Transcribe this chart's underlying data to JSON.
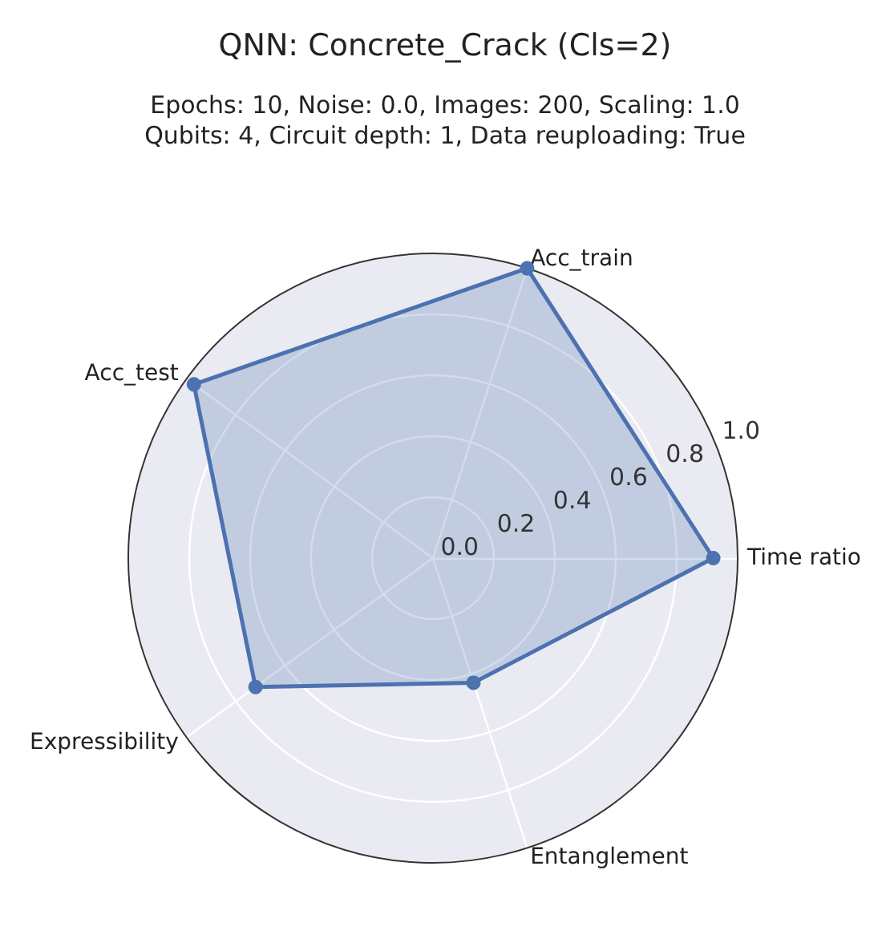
{
  "chart_data": {
    "type": "radar",
    "title": "QNN: Concrete_Crack (Cls=2)",
    "subtitle": "Epochs: 10, Noise: 0.0, Images: 200, Scaling: 1.0\nQubits: 4, Circuit depth: 1, Data reuploading: True",
    "categories": [
      "Acc_train",
      "Time ratio",
      "Entanglement",
      "Expressibility",
      "Acc_test"
    ],
    "series": [
      {
        "color": "#4c72b0",
        "values": [
          1.0,
          0.92,
          0.43,
          0.72,
          0.97
        ]
      }
    ],
    "ylim": [
      0,
      1
    ],
    "yticks": [
      {
        "value": 0,
        "label": "0.0"
      },
      0.2,
      0.4,
      0.6,
      0.8,
      {
        "value": 1,
        "label": "1.0"
      }
    ],
    "grid": true,
    "marker": "circle",
    "line_style": "solid"
  }
}
